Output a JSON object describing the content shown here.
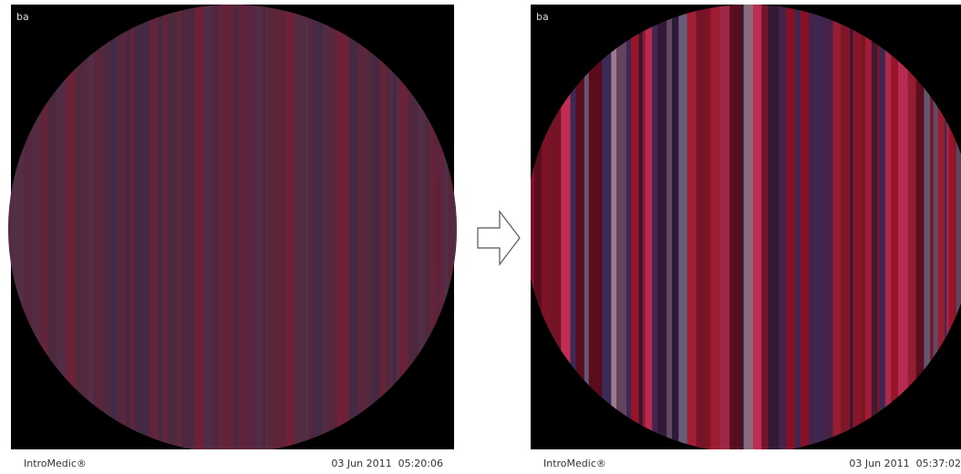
{
  "panels": [
    {
      "label": "ba",
      "brand": "IntroMedic®",
      "timestamp": "03 Jun 2011  05:20:06"
    },
    {
      "label": "ba",
      "brand": "IntroMedic®",
      "timestamp": "03 Jun 2011  05:37:02"
    }
  ]
}
